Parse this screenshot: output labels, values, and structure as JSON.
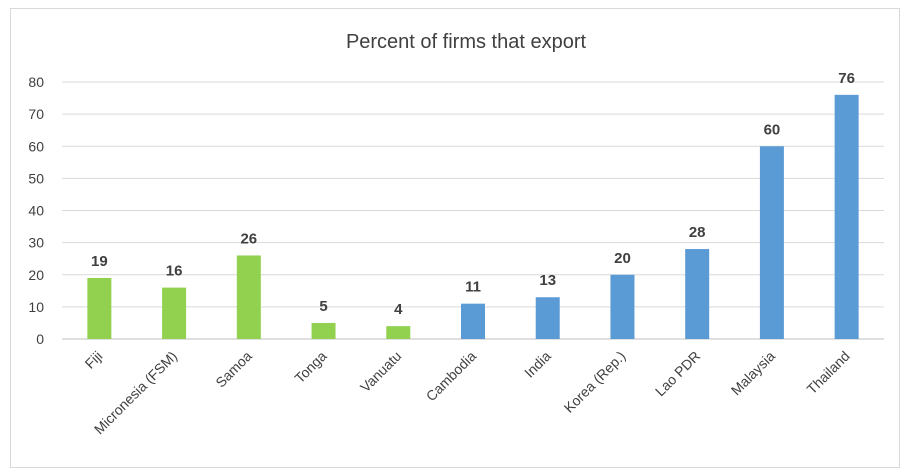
{
  "chart_data": {
    "type": "bar",
    "title": "Percent of firms that export",
    "xlabel": "",
    "ylabel": "",
    "ylim": [
      0,
      80
    ],
    "yticks": [
      0,
      10,
      20,
      30,
      40,
      50,
      60,
      70,
      80
    ],
    "grid": true,
    "legend": "none",
    "categories": [
      "Fiji",
      "Micronesia (FSM)",
      "Samoa",
      "Tonga",
      "Vanuatu",
      "Cambodia",
      "India",
      "Korea (Rep.)",
      "Lao PDR",
      "Malaysia",
      "Thailand"
    ],
    "values": [
      19,
      16,
      26,
      5,
      4,
      11,
      13,
      20,
      28,
      60,
      76
    ],
    "colors": [
      "#92d050",
      "#92d050",
      "#92d050",
      "#92d050",
      "#92d050",
      "#5b9bd5",
      "#5b9bd5",
      "#5b9bd5",
      "#5b9bd5",
      "#5b9bd5",
      "#5b9bd5"
    ]
  }
}
